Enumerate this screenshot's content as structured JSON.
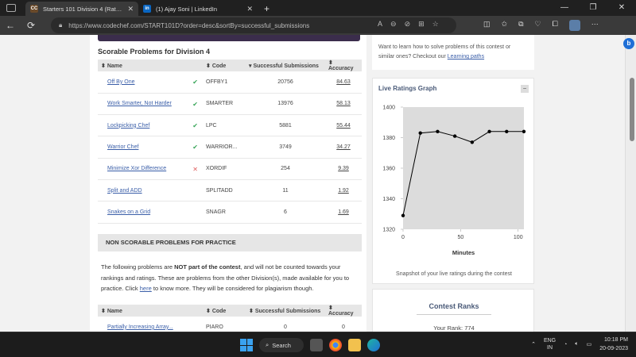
{
  "browser": {
    "tabs": [
      {
        "title": "Starters 101 Division 4 (Rated) C",
        "favicon": "CC",
        "favicon_color": "#6a4a2a",
        "active": true
      },
      {
        "title": "(1) Ajay Soni | LinkedIn",
        "favicon": "in",
        "favicon_color": "#0a66c2",
        "active": false
      }
    ],
    "url": "https://www.codechef.com/START101D?order=desc&sortBy=successful_submissions"
  },
  "scorable": {
    "title": "Scorable Problems for Division 4",
    "headers": {
      "name": "Name",
      "code": "Code",
      "subs": "Successful Submissions",
      "acc": "Accuracy"
    },
    "rows": [
      {
        "name": "Off By One",
        "status": "solved",
        "code": "OFFBY1",
        "subs": "20756",
        "acc": "84.63"
      },
      {
        "name": "Work Smarter, Not Harder",
        "status": "solved",
        "code": "SMARTER",
        "subs": "13976",
        "acc": "58.13"
      },
      {
        "name": "Lockpicking Chef",
        "status": "solved",
        "code": "LPC",
        "subs": "5881",
        "acc": "55.44"
      },
      {
        "name": "Warrior Chef",
        "status": "solved",
        "code": "WARRIOR...",
        "subs": "3749",
        "acc": "34.27"
      },
      {
        "name": "Minimize Xor Difference",
        "status": "wrong",
        "code": "XORDIF",
        "subs": "254",
        "acc": "9.39"
      },
      {
        "name": "Split and ADD",
        "status": "",
        "code": "SPLITADD",
        "subs": "11",
        "acc": "1.92"
      },
      {
        "name": "Snakes on a Grid",
        "status": "",
        "code": "SNAGR",
        "subs": "6",
        "acc": "1.69"
      }
    ]
  },
  "nonscorable": {
    "title": "NON SCORABLE PROBLEMS FOR PRACTICE",
    "para_1": "The following problems are ",
    "para_bold": "NOT part of the contest",
    "para_2": ", and will not be counted towards your rankings and ratings. These are problems from the other Division(s), made available for you to practice. Click ",
    "para_link": "here",
    "para_3": " to know more. They will be considered for plagiarism though.",
    "headers": {
      "name": "Name",
      "code": "Code",
      "subs": "Successful Submissions",
      "acc": "Accuracy"
    },
    "rows": [
      {
        "name": "Partially Increasing Array...",
        "code": "PIARO",
        "subs": "0",
        "acc": "0"
      }
    ]
  },
  "sidebar": {
    "learn_text": "Want to learn how to solve problems of this contest or similar ones? Checkout our ",
    "learn_link": "Learning paths",
    "graph_title": "Live Ratings Graph",
    "graph_toggle": "−",
    "graph_caption": "Snapshot of your live ratings during the contest",
    "ranks_title": "Contest Ranks",
    "your_rank": "Your Rank: 774"
  },
  "chart_data": {
    "type": "line",
    "title": "",
    "xlabel": "Minutes",
    "ylabel": "",
    "xlim": [
      0,
      105
    ],
    "ylim": [
      1320,
      1400
    ],
    "xticks": [
      0,
      50,
      100
    ],
    "yticks": [
      1320,
      1340,
      1360,
      1380,
      1400
    ],
    "x": [
      0,
      15,
      30,
      45,
      60,
      75,
      90,
      105
    ],
    "y": [
      1329,
      1383,
      1384,
      1381,
      1377,
      1384,
      1384,
      1384
    ],
    "grid": false,
    "plot_bg": "#dcdcdc"
  },
  "taskbar": {
    "search_label": "Search",
    "lang_1": "ENG",
    "lang_2": "IN",
    "time": "10:18 PM",
    "date": "20-09-2023"
  }
}
